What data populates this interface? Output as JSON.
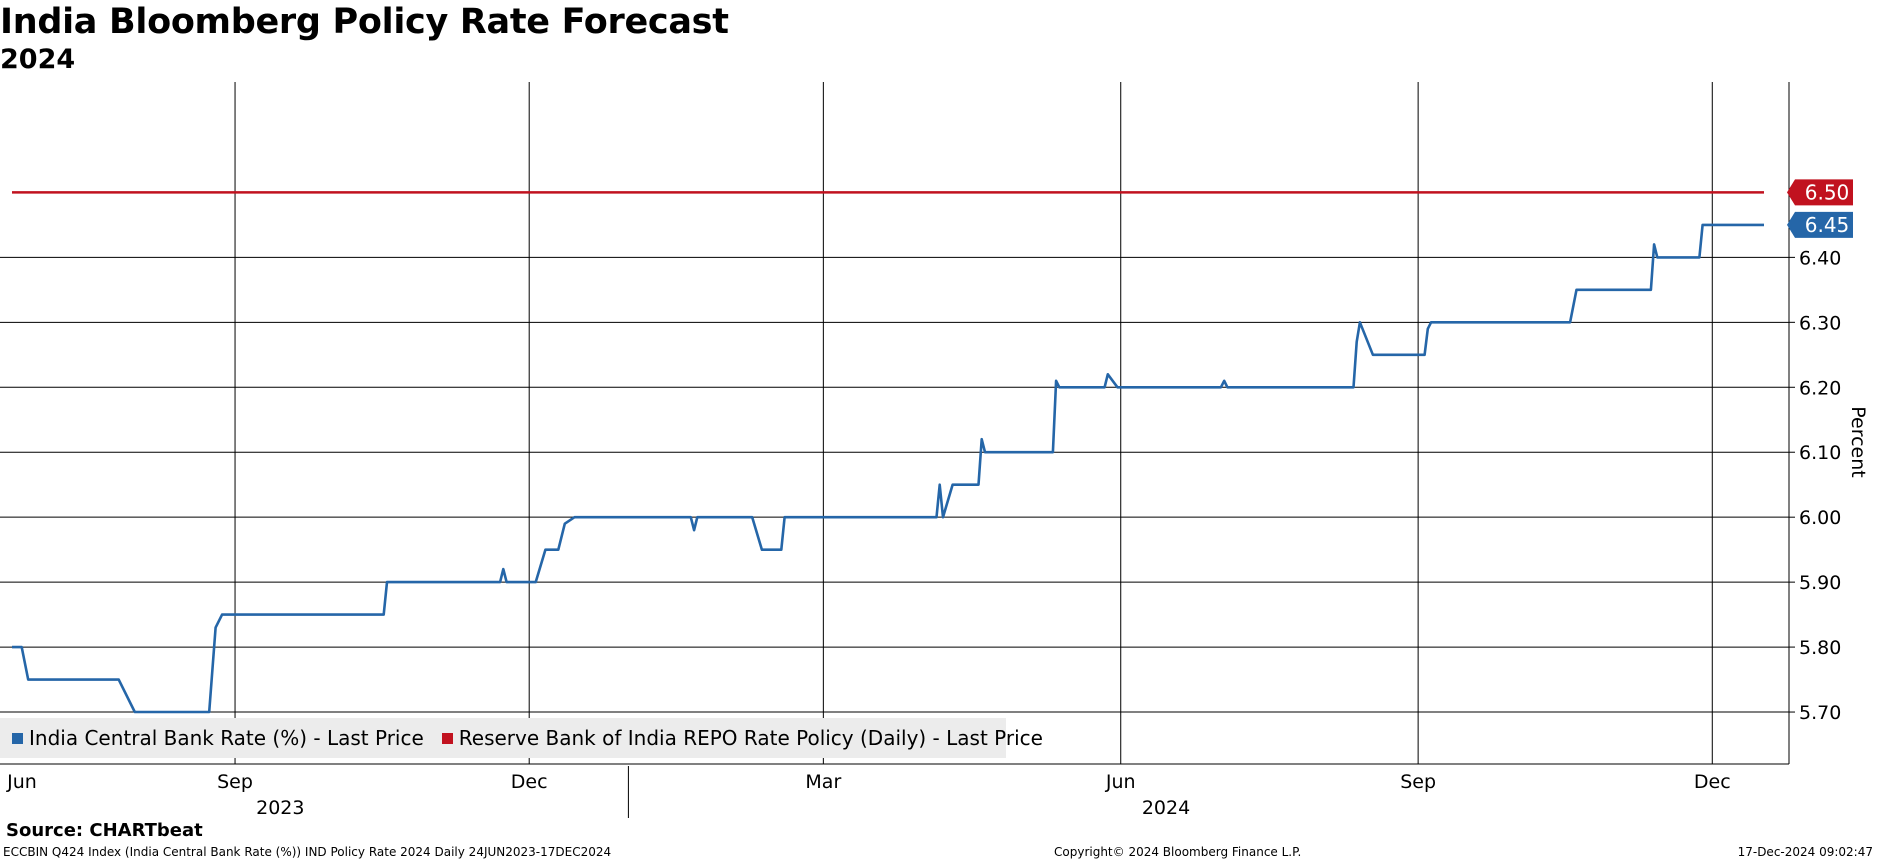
{
  "title": "India Bloomberg Policy Rate Forecast",
  "subtitle": "2024",
  "source": "Source: CHARTbeat",
  "footer": {
    "left": "ECCBIN Q424 Index (India Central Bank Rate (%)) IND Policy Rate 2024  Daily 24JUN2023-17DEC2024",
    "middle": "Copyright© 2024 Bloomberg Finance L.P.",
    "right": "17-Dec-2024 09:02:47"
  },
  "colors": {
    "series1": "#2566a8",
    "series2": "#c1121f",
    "grid": "#000000"
  },
  "chart_data": {
    "type": "line",
    "title": "India Bloomberg Policy Rate Forecast",
    "subtitle": "2024",
    "ylabel": "Percent",
    "ylim": [
      5.62,
      6.67
    ],
    "yticks": [
      5.7,
      5.8,
      5.9,
      6.0,
      6.1,
      6.2,
      6.3,
      6.4
    ],
    "y_tick_labels": [
      "5.70",
      "5.80",
      "5.90",
      "6.00",
      "6.10",
      "6.20",
      "6.30",
      "6.40"
    ],
    "xlim": [
      "2023-06-24",
      "2024-12-17"
    ],
    "x_ticks": [
      {
        "date": "2023-06-24",
        "label": "Jun"
      },
      {
        "date": "2023-09-01",
        "label": "Sep"
      },
      {
        "date": "2023-12-01",
        "label": "Dec"
      },
      {
        "date": "2024-03-01",
        "label": "Mar"
      },
      {
        "date": "2024-06-01",
        "label": "Jun"
      },
      {
        "date": "2024-09-01",
        "label": "Sep"
      },
      {
        "date": "2024-12-01",
        "label": "Dec"
      }
    ],
    "year_labels": [
      {
        "date": "2023-09-15",
        "label": "2023"
      },
      {
        "date": "2024-06-15",
        "label": "2024"
      }
    ],
    "grid": true,
    "legend_position": "bottom-left",
    "series": [
      {
        "name": "India Central Bank Rate (%) - Last Price",
        "color": "#2566a8",
        "last_value_label": "6.45",
        "points": [
          [
            "2023-06-24",
            5.8
          ],
          [
            "2023-06-27",
            5.8
          ],
          [
            "2023-06-29",
            5.75
          ],
          [
            "2023-07-27",
            5.75
          ],
          [
            "2023-08-01",
            5.7
          ],
          [
            "2023-08-24",
            5.7
          ],
          [
            "2023-08-26",
            5.83
          ],
          [
            "2023-08-28",
            5.85
          ],
          [
            "2023-10-17",
            5.85
          ],
          [
            "2023-10-18",
            5.9
          ],
          [
            "2023-11-22",
            5.9
          ],
          [
            "2023-11-23",
            5.92
          ],
          [
            "2023-11-24",
            5.9
          ],
          [
            "2023-12-03",
            5.9
          ],
          [
            "2023-12-06",
            5.95
          ],
          [
            "2023-12-10",
            5.95
          ],
          [
            "2023-12-12",
            5.99
          ],
          [
            "2023-12-15",
            6.0
          ],
          [
            "2024-01-20",
            6.0
          ],
          [
            "2024-01-21",
            5.98
          ],
          [
            "2024-01-22",
            6.0
          ],
          [
            "2024-02-08",
            6.0
          ],
          [
            "2024-02-11",
            5.95
          ],
          [
            "2024-02-17",
            5.95
          ],
          [
            "2024-02-18",
            6.0
          ],
          [
            "2024-04-05",
            6.0
          ],
          [
            "2024-04-06",
            6.05
          ],
          [
            "2024-04-07",
            6.0
          ],
          [
            "2024-04-10",
            6.05
          ],
          [
            "2024-04-18",
            6.05
          ],
          [
            "2024-04-19",
            6.12
          ],
          [
            "2024-04-20",
            6.1
          ],
          [
            "2024-05-11",
            6.1
          ],
          [
            "2024-05-12",
            6.21
          ],
          [
            "2024-05-13",
            6.2
          ],
          [
            "2024-05-27",
            6.2
          ],
          [
            "2024-05-28",
            6.22
          ],
          [
            "2024-05-31",
            6.2
          ],
          [
            "2024-07-02",
            6.2
          ],
          [
            "2024-07-03",
            6.21
          ],
          [
            "2024-07-04",
            6.2
          ],
          [
            "2024-08-12",
            6.2
          ],
          [
            "2024-08-13",
            6.27
          ],
          [
            "2024-08-14",
            6.3
          ],
          [
            "2024-08-18",
            6.25
          ],
          [
            "2024-09-03",
            6.25
          ],
          [
            "2024-09-04",
            6.29
          ],
          [
            "2024-09-05",
            6.3
          ],
          [
            "2024-10-18",
            6.3
          ],
          [
            "2024-10-20",
            6.35
          ],
          [
            "2024-11-12",
            6.35
          ],
          [
            "2024-11-13",
            6.42
          ],
          [
            "2024-11-14",
            6.4
          ],
          [
            "2024-11-27",
            6.4
          ],
          [
            "2024-11-28",
            6.45
          ],
          [
            "2024-12-17",
            6.45
          ]
        ]
      },
      {
        "name": "Reserve Bank of India REPO Rate Policy (Daily) - Last Price",
        "color": "#c1121f",
        "last_value_label": "6.50",
        "points": [
          [
            "2023-06-24",
            6.5
          ],
          [
            "2024-12-17",
            6.5
          ]
        ]
      }
    ]
  }
}
